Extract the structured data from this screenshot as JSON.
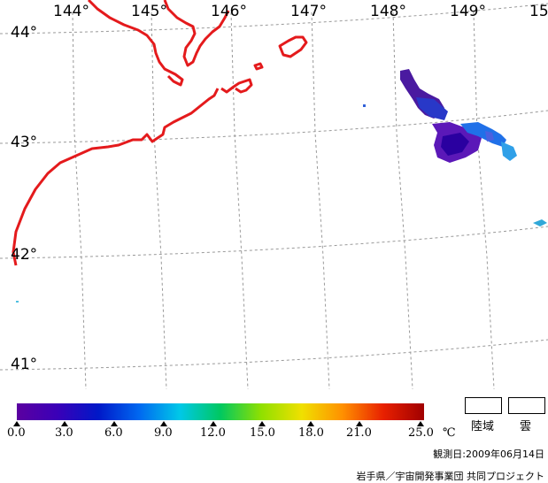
{
  "map": {
    "longitude_labels": [
      "144°",
      "145°",
      "146°",
      "147°",
      "148°",
      "149°",
      "15"
    ],
    "latitude_labels": [
      "44°",
      "43°",
      "42°",
      "41°"
    ]
  },
  "colorbar": {
    "tick_labels": [
      "0.0",
      "3.0",
      "6.0",
      "9.0",
      "12.0",
      "15.0",
      "18.0",
      "21.0",
      "25.0"
    ],
    "unit": "℃",
    "colors": [
      "#5b00a0",
      "#0018c8",
      "#0068f0",
      "#00c8e8",
      "#00c860",
      "#90e000",
      "#f0e000",
      "#ff9000",
      "#a00000"
    ]
  },
  "legend": {
    "land_label": "陸域",
    "cloud_label": "雲"
  },
  "footer": {
    "observation_date": "観測日:2009年06月14日",
    "credit": "岩手県／宇宙開発事業団 共同プロジェクト"
  }
}
